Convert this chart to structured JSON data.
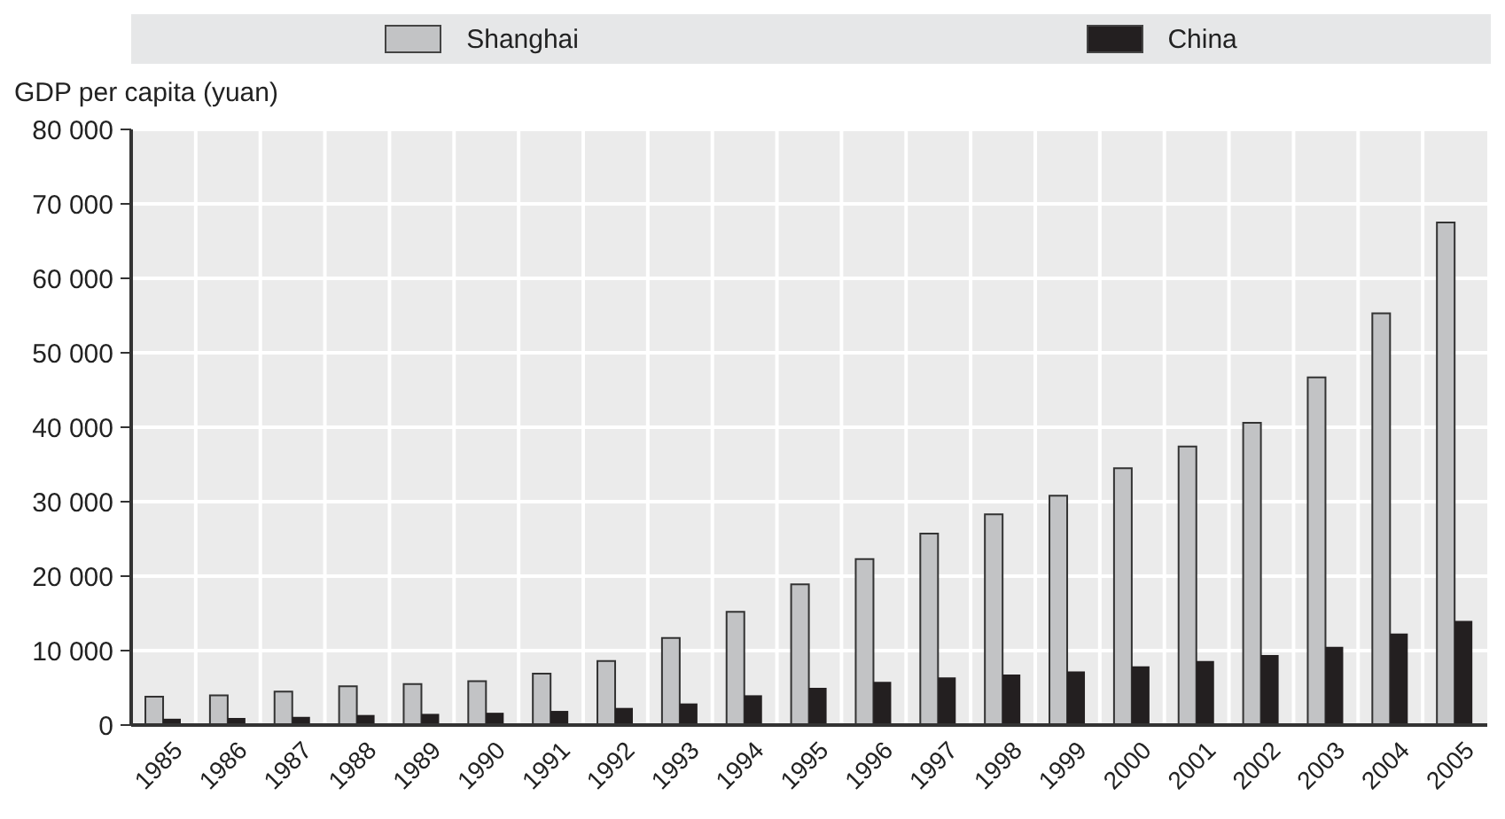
{
  "chart_data": {
    "type": "bar",
    "ylabel": "GDP per capita (yuan)",
    "categories": [
      "1985",
      "1986",
      "1987",
      "1988",
      "1989",
      "1990",
      "1991",
      "1992",
      "1993",
      "1994",
      "1995",
      "1996",
      "1997",
      "1998",
      "1999",
      "2000",
      "2001",
      "2002",
      "2003",
      "2004",
      "2005"
    ],
    "series": [
      {
        "name": "Shanghai",
        "color": "#c2c3c5",
        "values": [
          3800,
          4000,
          4500,
          5200,
          5500,
          5900,
          6900,
          8600,
          11700,
          15200,
          18900,
          22300,
          25700,
          28300,
          30800,
          34500,
          37400,
          40600,
          46700,
          55300,
          67500
        ]
      },
      {
        "name": "China",
        "color": "#231f20",
        "values": [
          850,
          950,
          1100,
          1350,
          1500,
          1650,
          1900,
          2300,
          2900,
          4000,
          5000,
          5800,
          6400,
          6800,
          7200,
          7900,
          8600,
          9400,
          10500,
          12300,
          14000
        ]
      }
    ],
    "ylim": [
      0,
      80000
    ],
    "yticks": [
      {
        "value": 0,
        "label": "0"
      },
      {
        "value": 10000,
        "label": "10 000"
      },
      {
        "value": 20000,
        "label": "20 000"
      },
      {
        "value": 30000,
        "label": "30 000"
      },
      {
        "value": 40000,
        "label": "40 000"
      },
      {
        "value": 50000,
        "label": "50 000"
      },
      {
        "value": 60000,
        "label": "60 000"
      },
      {
        "value": 70000,
        "label": "70 000"
      },
      {
        "value": 80000,
        "label": "80 000"
      }
    ],
    "grid": true,
    "legend": "top"
  }
}
